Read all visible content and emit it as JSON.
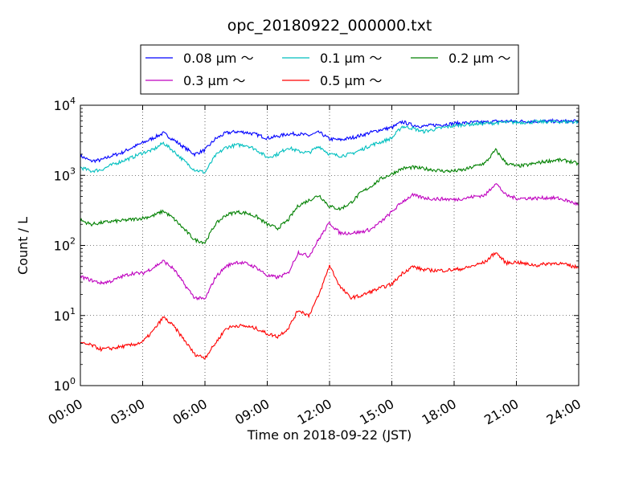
{
  "chart_data": {
    "type": "line",
    "title": "opc_20180922_000000.txt",
    "xlabel": "Time on 2018-09-22 (JST)",
    "ylabel": "Count / L",
    "x_unit": "hours",
    "xlim": [
      0,
      24
    ],
    "ylim": [
      1,
      10000
    ],
    "yscale": "log",
    "grid": true,
    "legend_position": "top-center",
    "x_ticks": [
      "00:00",
      "03:00",
      "06:00",
      "09:00",
      "12:00",
      "15:00",
      "18:00",
      "21:00",
      "24:00"
    ],
    "y_ticks": [
      {
        "base": "10",
        "exp": "0"
      },
      {
        "base": "10",
        "exp": "1"
      },
      {
        "base": "10",
        "exp": "2"
      },
      {
        "base": "10",
        "exp": "3"
      },
      {
        "base": "10",
        "exp": "4"
      }
    ],
    "x": [
      0,
      0.5,
      1,
      1.5,
      2,
      2.5,
      3,
      3.5,
      4,
      4.5,
      5,
      5.5,
      6,
      6.5,
      7,
      7.5,
      8,
      8.5,
      9,
      9.5,
      10,
      10.5,
      11,
      11.5,
      12,
      12.5,
      13,
      13.5,
      14,
      14.5,
      15,
      15.5,
      16,
      16.5,
      17,
      17.5,
      18,
      18.5,
      19,
      19.5,
      20,
      20.5,
      21,
      21.5,
      22,
      22.5,
      23,
      23.5,
      24
    ],
    "series": [
      {
        "name": "0.08 μm ～",
        "color": "#0000ff",
        "values": [
          1900,
          1600,
          1650,
          1900,
          2100,
          2500,
          2900,
          3400,
          4000,
          3200,
          2500,
          2000,
          2300,
          3300,
          4000,
          4200,
          4100,
          3800,
          3400,
          3600,
          3900,
          3900,
          3700,
          4100,
          3300,
          3200,
          3400,
          3700,
          4100,
          4500,
          4800,
          5800,
          5200,
          5000,
          5200,
          5300,
          5500,
          5600,
          5700,
          5700,
          5900,
          5900,
          5900,
          5900,
          5900,
          5900,
          5900,
          5900,
          5900
        ]
      },
      {
        "name": "0.1 μm ～",
        "color": "#00bfbf",
        "values": [
          1300,
          1150,
          1200,
          1400,
          1600,
          1800,
          2100,
          2300,
          2900,
          2200,
          1600,
          1200,
          1100,
          1900,
          2500,
          2700,
          2700,
          2300,
          1800,
          2000,
          2500,
          2200,
          2100,
          2600,
          2000,
          1900,
          2000,
          2300,
          2700,
          3000,
          3400,
          5000,
          4700,
          4200,
          4500,
          4800,
          5100,
          5300,
          5400,
          5500,
          5600,
          5700,
          5700,
          5700,
          5800,
          5800,
          5800,
          5800,
          5800
        ]
      },
      {
        "name": "0.2 μm ～",
        "color": "#008000",
        "values": [
          230,
          200,
          210,
          220,
          225,
          235,
          245,
          265,
          310,
          240,
          170,
          120,
          110,
          200,
          270,
          300,
          290,
          255,
          200,
          175,
          230,
          370,
          440,
          520,
          360,
          330,
          400,
          560,
          700,
          900,
          1050,
          1250,
          1300,
          1250,
          1200,
          1150,
          1150,
          1200,
          1350,
          1500,
          2300,
          1500,
          1350,
          1400,
          1500,
          1600,
          1650,
          1600,
          1450
        ]
      },
      {
        "name": "0.3 μm ～",
        "color": "#bf00bf",
        "values": [
          36,
          32,
          29,
          31,
          36,
          40,
          40,
          48,
          60,
          46,
          28,
          18,
          17,
          35,
          50,
          58,
          55,
          48,
          37,
          35,
          40,
          80,
          70,
          125,
          210,
          150,
          150,
          155,
          170,
          220,
          300,
          420,
          520,
          480,
          460,
          460,
          450,
          470,
          500,
          520,
          780,
          520,
          470,
          470,
          470,
          480,
          470,
          430,
          380
        ]
      },
      {
        "name": "0.5 μm ～",
        "color": "#ff0000",
        "values": [
          4,
          3.8,
          3.3,
          3.4,
          3.6,
          3.8,
          4.2,
          6,
          9.5,
          7,
          4.5,
          2.8,
          2.5,
          4,
          6.5,
          7.2,
          7,
          6.5,
          5.5,
          5,
          6.5,
          12,
          10,
          20,
          52,
          26,
          18,
          19,
          22,
          25,
          28,
          40,
          50,
          45,
          44,
          44,
          45,
          47,
          52,
          58,
          80,
          56,
          58,
          54,
          52,
          55,
          56,
          52,
          48
        ]
      }
    ]
  }
}
